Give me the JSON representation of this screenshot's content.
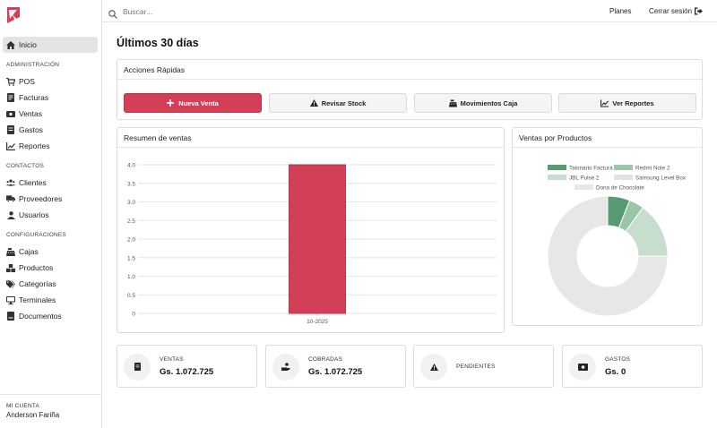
{
  "sidebar": {
    "items": {
      "inicio": "Inicio",
      "pos": "POS",
      "facturas": "Facturas",
      "ventas": "Ventas",
      "gastos": "Gastos",
      "reportes": "Reportes",
      "clientes": "Clientes",
      "proveedores": "Proveedores",
      "usuarios": "Usuarios",
      "cajas": "Cajas",
      "productos": "Productos",
      "categorias": "Categorías",
      "terminales": "Terminales",
      "documentos": "Documentos"
    },
    "sections": {
      "administracion": "ADMINISTRACIÓN",
      "contactos": "CONTACTOS",
      "configuraciones": "CONFIGURACIONES"
    },
    "account": {
      "title": "MI CUENTA",
      "name": "Anderson Fariña"
    }
  },
  "topbar": {
    "search_placeholder": "Buscar...",
    "planes": "Planes",
    "logout": "Cerrar sesión"
  },
  "page": {
    "title": "Últimos 30 días"
  },
  "quick_actions": {
    "title": "Acciones Rápidas",
    "new_sale": "Nueva Venta",
    "check_stock": "Revisar Stock",
    "cash_moves": "Movimientos Caja",
    "reports": "Ver Reportes"
  },
  "sales_summary": {
    "title": "Resumen de ventas"
  },
  "products_sales": {
    "title": "Ventas por Productos"
  },
  "stats": {
    "ventas": {
      "label": "VENTAS",
      "value": "Gs. 1.072.725"
    },
    "cobradas": {
      "label": "COBRADAS",
      "value": "Gs. 1.072.725"
    },
    "pendientes": {
      "label": "PENDIENTES"
    },
    "gastos": {
      "label": "GASTOS",
      "value": "Gs. 0"
    }
  },
  "colors": {
    "brand": "#d23f56",
    "donut": [
      "#5a9a72",
      "#9bc5a8",
      "#c7decf",
      "#e2e2e2",
      "#e7e7e7"
    ]
  },
  "chart_data": [
    {
      "type": "bar",
      "categories": [
        "10-2025"
      ],
      "values": [
        4.0
      ],
      "ylim": [
        0,
        4.0
      ],
      "yticks": [
        "0",
        "0.5",
        "1.0",
        "1.5",
        "2.0",
        "2.5",
        "3.0",
        "3.5",
        "4.0"
      ],
      "grid": true,
      "color": "#d23f56"
    },
    {
      "type": "pie",
      "donut": true,
      "legend": "top",
      "labels": [
        "Talonario Factura",
        "Redmi Note 2",
        "JBL Pulse 2",
        "Samsung Level Box",
        "Dona de Chocolate"
      ],
      "values": [
        6,
        4,
        15,
        0,
        75
      ]
    }
  ]
}
